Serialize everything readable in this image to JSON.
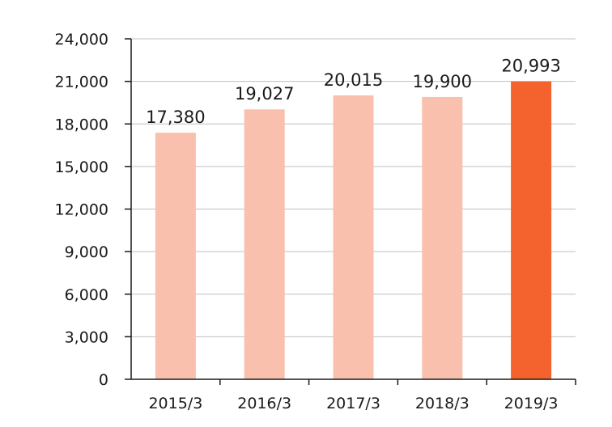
{
  "chart_data": {
    "type": "bar",
    "title": "",
    "xlabel": "",
    "ylabel": "",
    "categories": [
      "2015/3",
      "2016/3",
      "2017/3",
      "2018/3",
      "2019/3"
    ],
    "values": [
      17380,
      19027,
      20015,
      19900,
      20993
    ],
    "data_labels": [
      "17,380",
      "19,027",
      "20,015",
      "19,900",
      "20,993"
    ],
    "ylim": [
      0,
      24000
    ],
    "yticks": [
      0,
      3000,
      6000,
      9000,
      12000,
      15000,
      18000,
      21000,
      24000
    ],
    "ytick_labels": [
      "0",
      "3,000",
      "6,000",
      "9,000",
      "12,000",
      "15,000",
      "18,000",
      "21,000",
      "24,000"
    ],
    "grid": true,
    "legend": "none",
    "colors": {
      "bar": "#f9c1ad",
      "highlight_bar": "#f4622e",
      "grid": "#bfbfbf",
      "axis": "#1a1a1a"
    },
    "highlight_index": 4
  }
}
